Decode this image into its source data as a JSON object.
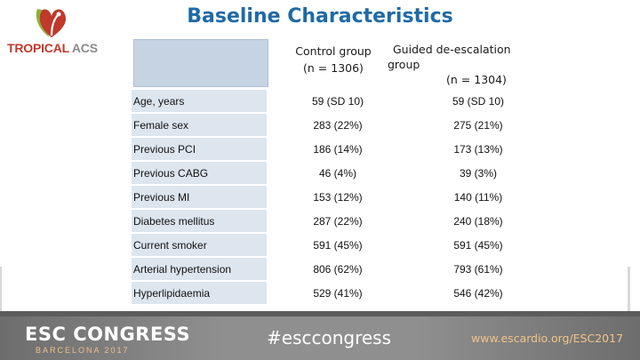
{
  "slide": {
    "title": "Baseline Characteristics",
    "logo": {
      "text_main": "TROPICAL",
      "text_accent": "ACS",
      "primary_color": "#c0392b",
      "accent_color": "#8a8a8a"
    },
    "title_color": "#1f6aa6"
  },
  "table": {
    "columns": [
      {
        "line1": "Control group",
        "line2": "(n = 1306)"
      },
      {
        "line1": "Guided de-escalation",
        "line2": "group",
        "line3": "(n = 1304)"
      }
    ],
    "rows": [
      {
        "label": "Age, years",
        "control": "59 (SD 10)",
        "guided": "59 (SD 10)"
      },
      {
        "label": "Female sex",
        "control": "283 (22%)",
        "guided": "275 (21%)"
      },
      {
        "label": "Previous PCI",
        "control": "186 (14%)",
        "guided": "173 (13%)"
      },
      {
        "label": "Previous CABG",
        "control": "46 (4%)",
        "guided": "39 (3%)"
      },
      {
        "label": "Previous MI",
        "control": "153 (12%)",
        "guided": "140 (11%)"
      },
      {
        "label": "Diabetes mellitus",
        "control": "287 (22%)",
        "guided": "240 (18%)"
      },
      {
        "label": "Current smoker",
        "control": "591 (45%)",
        "guided": "591 (45%)"
      },
      {
        "label": "Arterial hypertension",
        "control": "806 (62%)",
        "guided": "793 (61%)"
      },
      {
        "label": "Hyperlipidaemia",
        "control": "529 (41%)",
        "guided": "546 (42%)"
      }
    ],
    "label_bg_color": "#dde5ef",
    "header_bg_color": "#c5d3e3"
  },
  "footer": {
    "congress": "ESC CONGRESS",
    "city": "BARCELONA 2017",
    "hashtag": "#esccongress",
    "url": "www.escardio.org/ESC2017"
  }
}
